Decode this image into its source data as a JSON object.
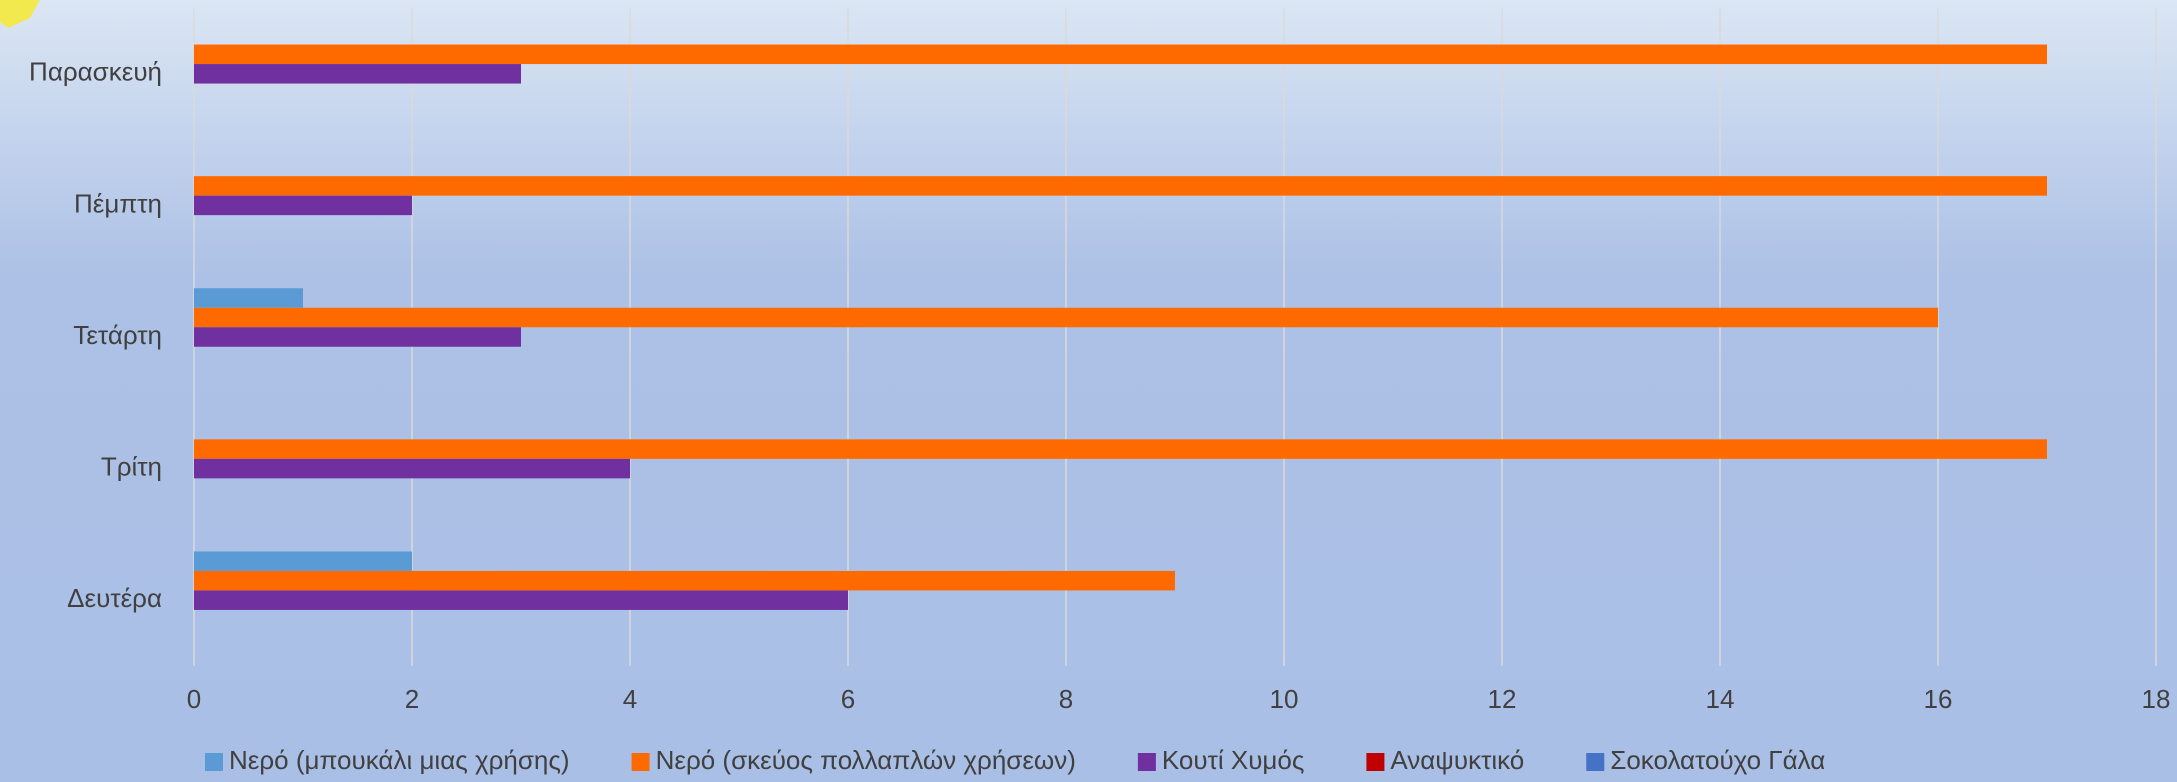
{
  "chart_data": {
    "type": "hbar",
    "categories": [
      "Δευτέρα",
      "Τρίτη",
      "Τετάρτη",
      "Πέμπτη",
      "Παρασκευή"
    ],
    "series": [
      {
        "name": "Νερό (μπουκάλι μιας χρήσης)",
        "color": "#5b9bd5",
        "values": [
          2,
          0,
          1,
          0,
          0
        ]
      },
      {
        "name": "Νερό (σκεύος πολλαπλών χρήσεων)",
        "color": "#ff6a00",
        "values": [
          9,
          17,
          16,
          17,
          17
        ]
      },
      {
        "name": "Κουτί Χυμός",
        "color": "#7030a0",
        "values": [
          6,
          4,
          3,
          2,
          3
        ]
      },
      {
        "name": "Αναψυκτικό",
        "color": "#c00000",
        "values": [
          0,
          0,
          0,
          0,
          0
        ]
      },
      {
        "name": "Σοκολατούχο Γάλα",
        "color": "#4472c4",
        "values": [
          0,
          0,
          0,
          0,
          0
        ]
      }
    ],
    "xlim": [
      0,
      18
    ],
    "xticks": [
      0,
      2,
      4,
      6,
      8,
      10,
      12,
      14,
      16,
      18
    ],
    "grid": true,
    "legend": "bottom"
  }
}
